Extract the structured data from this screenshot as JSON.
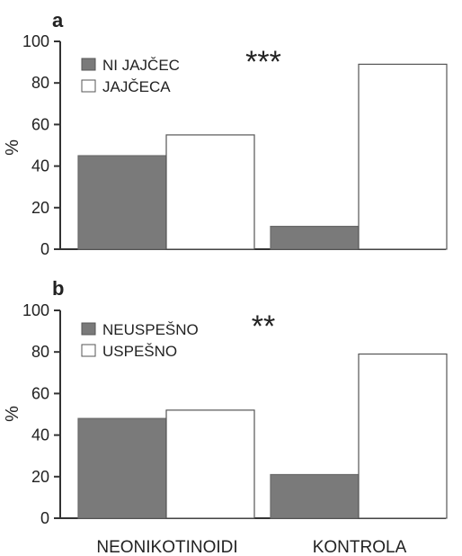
{
  "chart_data": [
    {
      "panel_label": "a",
      "type": "bar",
      "categories": [
        "NEONIKOTINOIDI",
        "KONTROLA"
      ],
      "series": [
        {
          "name": "NI JAJČEC",
          "values": [
            45,
            11
          ],
          "color": "#7a7a7a"
        },
        {
          "name": "JAJČECA",
          "values": [
            55,
            89
          ],
          "color": "#ffffff"
        }
      ],
      "ylabel": "%",
      "ylim": [
        0,
        100
      ],
      "yticks": [
        0,
        20,
        40,
        60,
        80,
        100
      ],
      "significance": "***",
      "legend_position": "top-left",
      "grid": false
    },
    {
      "panel_label": "b",
      "type": "bar",
      "categories": [
        "NEONIKOTINOIDI",
        "KONTROLA"
      ],
      "series": [
        {
          "name": "NEUSPEŠNO",
          "values": [
            48,
            21
          ],
          "color": "#7a7a7a"
        },
        {
          "name": "USPEŠNO",
          "values": [
            52,
            79
          ],
          "color": "#ffffff"
        }
      ],
      "ylabel": "%",
      "ylim": [
        0,
        100
      ],
      "yticks": [
        0,
        20,
        40,
        60,
        80,
        100
      ],
      "significance": "**",
      "legend_position": "top-left",
      "grid": false,
      "show_category_labels": true
    }
  ]
}
